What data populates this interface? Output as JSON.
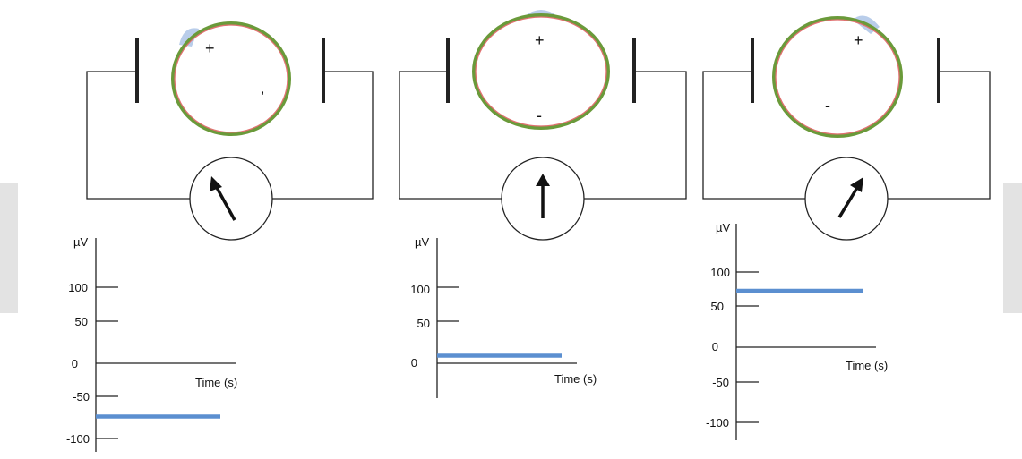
{
  "panels": [
    {
      "cell": {
        "plus": "+",
        "minus": ","
      },
      "meter": "tilted-left-arrow-icon",
      "graph": {
        "unit": "µV",
        "ticks": [
          "100",
          "50",
          "0",
          "-50",
          "-100"
        ],
        "xlabel": "Time (s)",
        "signal_value": -70
      }
    },
    {
      "cell": {
        "plus": "+",
        "minus": "-"
      },
      "meter": "up-arrow-icon",
      "graph": {
        "unit": "µV",
        "ticks": [
          "100",
          "50",
          "0"
        ],
        "xlabel": "Time (s)",
        "signal_value": 10
      }
    },
    {
      "cell": {
        "plus": "+",
        "minus": "-"
      },
      "meter": "tilted-right-arrow-icon",
      "graph": {
        "unit": "µV",
        "ticks": [
          "100",
          "50",
          "0",
          "-50",
          "-100"
        ],
        "xlabel": "Time (s)",
        "signal_value": 75
      }
    }
  ],
  "colors": {
    "signal": "#5b8fd0",
    "membrane_outer": "#6a9a3a",
    "membrane_inner": "#e07070",
    "bleb": "#b9cdea",
    "wire": "#222222",
    "watermark": "#e3e3e3"
  }
}
